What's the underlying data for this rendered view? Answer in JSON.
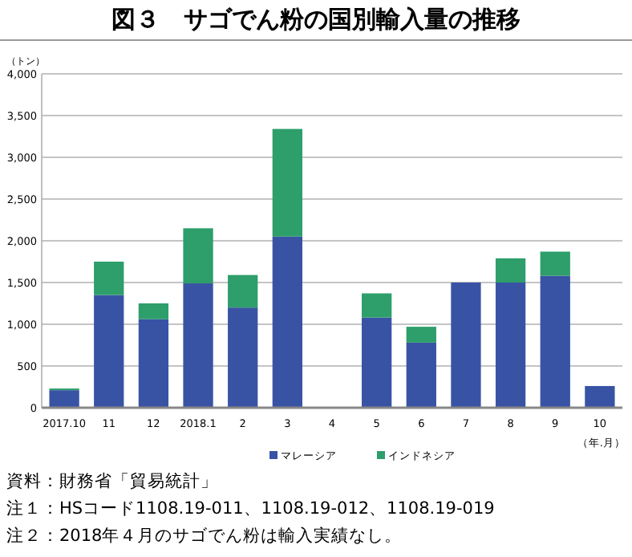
{
  "chart_data": {
    "type": "bar",
    "title": "図３　サゴでん粉の国別輸入量の推移",
    "ylabel": "（トン）",
    "xlabel": "（年.月）",
    "categories": [
      "2017.10",
      "11",
      "12",
      "2018.1",
      "2",
      "3",
      "4",
      "5",
      "6",
      "7",
      "8",
      "9",
      "10"
    ],
    "stacked": true,
    "series": [
      {
        "name": "マレーシア",
        "color": "#3953a4",
        "values": [
          210,
          1350,
          1060,
          1490,
          1200,
          2050,
          null,
          1080,
          780,
          1500,
          1500,
          1580,
          260
        ]
      },
      {
        "name": "インドネシア",
        "color": "#2e9e6b",
        "values": [
          20,
          400,
          190,
          660,
          390,
          1290,
          null,
          290,
          190,
          0,
          290,
          290,
          0
        ]
      }
    ],
    "ylim": [
      0,
      4000
    ],
    "yticks": [
      0,
      500,
      {
        "value": 1000,
        "label": "1,000"
      },
      {
        "value": 1500,
        "label": "1,500"
      },
      {
        "value": 2000,
        "label": "2,000"
      },
      {
        "value": 2500,
        "label": "2,500"
      },
      {
        "value": 3000,
        "label": "3,000"
      },
      {
        "value": 3500,
        "label": "3,500"
      },
      {
        "value": 4000,
        "label": "4,000"
      }
    ],
    "grid": "y",
    "legend": "bottom",
    "annotations": [
      "資料：財務省「貿易統計」",
      "注１：HSコード1108.19-011、1108.19-012、1108.19-019",
      "注２：2018年４月のサゴでん粉は輸入実績なし。"
    ]
  }
}
